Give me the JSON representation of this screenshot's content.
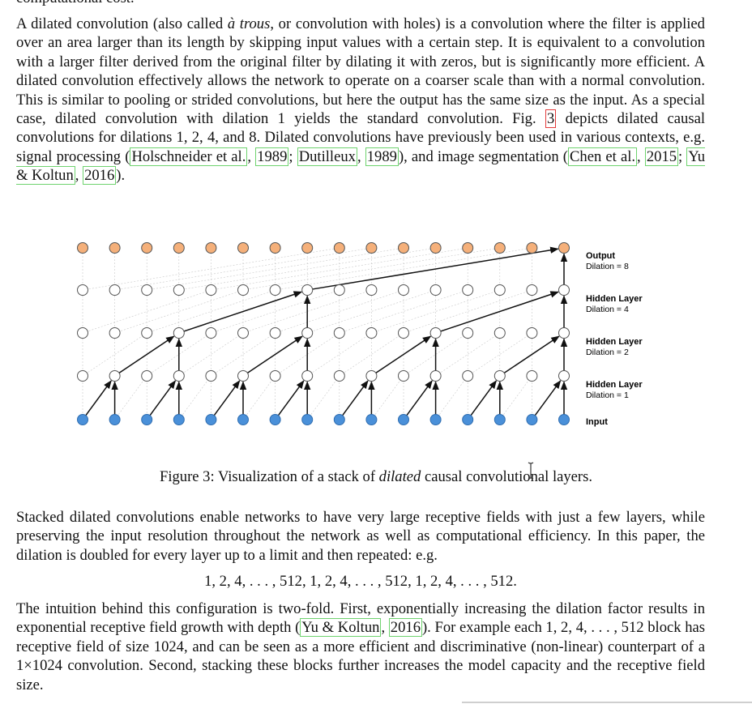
{
  "top_cut_text": "computational cost.",
  "para1": {
    "t1": "A dilated convolution (also called ",
    "t1_em": "à trous",
    "t2": ", or convolution with holes) is a convolution where the filter is applied over an area larger than its length by skipping input values with a certain step. It is equivalent to a convolution with a larger filter derived from the original filter by dilating it with zeros, but is significantly more efficient. A dilated convolution effectively allows the network to operate on a coarser scale than with a normal convolution. This is similar to pooling or strided convolutions, but here the output has the same size as the input. As a special case, dilated convolution with dilation 1 yields the standard convolution. Fig. ",
    "fig_ref": "3",
    "t3": " depicts dilated causal convolutions for dilations 1, 2, 4, and 8. Dilated convolutions have previously been used in various contexts, e.g. signal processing (",
    "c1_name": "Holschneider et al.",
    "sep1": ", ",
    "c1_year": "1989",
    "semi1": "; ",
    "c2_name": "Dutilleux",
    "sep2": ", ",
    "c2_year": "1989",
    "t4": "), and image segmentation (",
    "c3_name": "Chen et al.",
    "sep3": ", ",
    "c3_year": "2015",
    "semi2": "; ",
    "c4_name": "Yu & Koltun",
    "sep4": ", ",
    "c4_year": "2016",
    "t5": ")."
  },
  "figure": {
    "layers": [
      {
        "name": "Output",
        "sub": "Dilation = 8"
      },
      {
        "name": "Hidden Layer",
        "sub": "Dilation = 4"
      },
      {
        "name": "Hidden Layer",
        "sub": "Dilation = 2"
      },
      {
        "name": "Hidden Layer",
        "sub": "Dilation = 1"
      },
      {
        "name": "Input",
        "sub": ""
      }
    ],
    "dilations": [
      1,
      2,
      4,
      8
    ],
    "node_count": 16,
    "colors": {
      "input": "#4a90d9",
      "output": "#f5b07a",
      "hidden": "#ffffff",
      "edge": "#111111",
      "grid": "#c8c8c8"
    }
  },
  "caption": {
    "prefix": "Figure 3: Visualization of a stack of ",
    "em": "dilated",
    "suffix": " causal convolutional layers."
  },
  "para2": "Stacked dilated convolutions enable networks to have very large receptive fields with just a few layers, while preserving the input resolution throughout the network as well as computational efficiency. In this paper, the dilation is doubled for every layer up to a limit and then repeated: e.g.",
  "equation": "1, 2, 4, . . . , 512, 1, 2, 4, . . . , 512, 1, 2, 4, . . . , 512.",
  "para3": {
    "t1": "The intuition behind this configuration is two-fold. First, exponentially increasing the dilation factor results in exponential receptive field growth with depth (",
    "c_name": "Yu & Koltun",
    "sep": ", ",
    "c_year": "2016",
    "t2": "). For example each 1, 2, 4, . . . , 512 block has receptive field of size 1024, and can be seen as a more efficient and discriminative (non-linear) counterpart of a 1×1024 convolution. Second, stacking these blocks further increases the model capacity and the receptive field size."
  }
}
